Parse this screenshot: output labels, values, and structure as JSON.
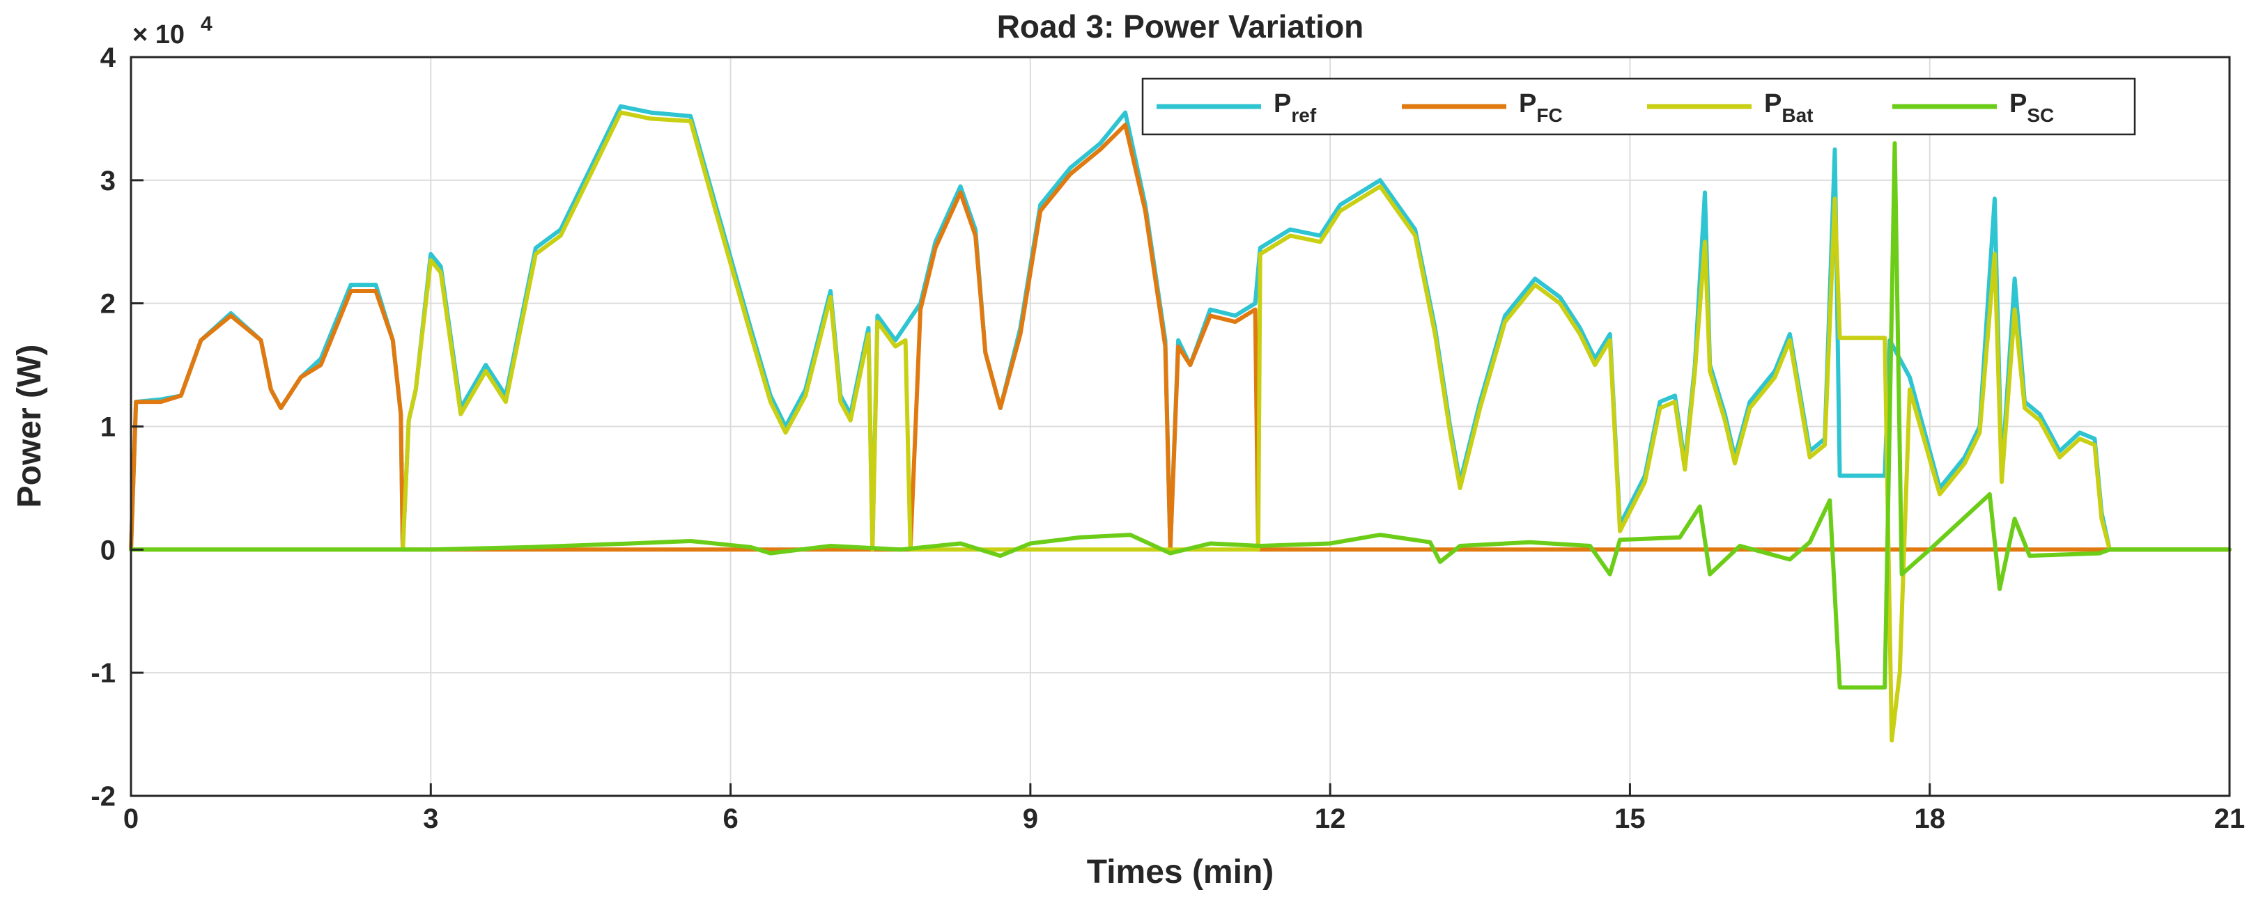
{
  "chart_data": {
    "type": "line",
    "title": "Road 3: Power Variation",
    "xlabel": "Times (min)",
    "ylabel": "Power (W)",
    "xlim": [
      0,
      21
    ],
    "ylim": [
      -20000,
      40000
    ],
    "x_ticks": [
      "0",
      "3",
      "6",
      "9",
      "12",
      "15",
      "18",
      "21"
    ],
    "y_ticks": [
      "-2",
      "-1",
      "0",
      "1",
      "2",
      "3",
      "4"
    ],
    "y_exponent": "4",
    "y_multiplier_text": "× 10",
    "grid": true,
    "legend_position": "top-right",
    "colors": {
      "P_ref": "#2ec4d1",
      "P_FC": "#e07a10",
      "P_Bat": "#c9cf12",
      "P_SC": "#6ccd18",
      "axis": "#262626",
      "grid": "#dcdcdc"
    },
    "legend": [
      {
        "key": "P_ref",
        "main": "P",
        "sub": "ref"
      },
      {
        "key": "P_FC",
        "main": "P",
        "sub": "FC"
      },
      {
        "key": "P_Bat",
        "main": "P",
        "sub": "Bat"
      },
      {
        "key": "P_SC",
        "main": "P",
        "sub": "SC"
      }
    ],
    "series": [
      {
        "key": "P_ref",
        "points": [
          [
            0,
            0
          ],
          [
            0.05,
            12000
          ],
          [
            0.3,
            12200
          ],
          [
            0.5,
            12500
          ],
          [
            0.7,
            17000
          ],
          [
            1.0,
            19200
          ],
          [
            1.3,
            17000
          ],
          [
            1.4,
            13000
          ],
          [
            1.5,
            11500
          ],
          [
            1.7,
            14000
          ],
          [
            1.9,
            15500
          ],
          [
            2.2,
            21500
          ],
          [
            2.45,
            21500
          ],
          [
            2.62,
            17000
          ],
          [
            2.7,
            11000
          ],
          [
            2.72,
            0
          ],
          [
            2.78,
            10500
          ],
          [
            2.85,
            13000
          ],
          [
            3.0,
            24000
          ],
          [
            3.1,
            23000
          ],
          [
            3.3,
            11500
          ],
          [
            3.55,
            15000
          ],
          [
            3.75,
            12500
          ],
          [
            4.05,
            24500
          ],
          [
            4.3,
            26000
          ],
          [
            4.6,
            31000
          ],
          [
            4.9,
            36000
          ],
          [
            5.2,
            35500
          ],
          [
            5.6,
            35200
          ],
          [
            5.85,
            28000
          ],
          [
            6.2,
            18000
          ],
          [
            6.4,
            12500
          ],
          [
            6.55,
            10000
          ],
          [
            6.75,
            13000
          ],
          [
            7.0,
            21000
          ],
          [
            7.1,
            12500
          ],
          [
            7.2,
            11000
          ],
          [
            7.38,
            18000
          ],
          [
            7.42,
            0
          ],
          [
            7.47,
            19000
          ],
          [
            7.65,
            17000
          ],
          [
            7.9,
            20000
          ],
          [
            8.05,
            25000
          ],
          [
            8.3,
            29500
          ],
          [
            8.45,
            26000
          ],
          [
            8.55,
            16000
          ],
          [
            8.7,
            11500
          ],
          [
            8.9,
            18000
          ],
          [
            9.1,
            28000
          ],
          [
            9.4,
            31000
          ],
          [
            9.7,
            33000
          ],
          [
            9.95,
            35500
          ],
          [
            10.15,
            28000
          ],
          [
            10.35,
            17000
          ],
          [
            10.4,
            0
          ],
          [
            10.48,
            17000
          ],
          [
            10.6,
            15000
          ],
          [
            10.8,
            19500
          ],
          [
            11.05,
            19000
          ],
          [
            11.25,
            20000
          ],
          [
            11.3,
            24500
          ],
          [
            11.6,
            26000
          ],
          [
            11.9,
            25500
          ],
          [
            12.1,
            28000
          ],
          [
            12.5,
            30000
          ],
          [
            12.85,
            26000
          ],
          [
            13.05,
            18000
          ],
          [
            13.2,
            10000
          ],
          [
            13.3,
            5500
          ],
          [
            13.5,
            12000
          ],
          [
            13.75,
            19000
          ],
          [
            14.05,
            22000
          ],
          [
            14.3,
            20500
          ],
          [
            14.5,
            18000
          ],
          [
            14.65,
            15500
          ],
          [
            14.8,
            17500
          ],
          [
            14.9,
            2000
          ],
          [
            15.15,
            6000
          ],
          [
            15.3,
            12000
          ],
          [
            15.45,
            12500
          ],
          [
            15.55,
            7000
          ],
          [
            15.65,
            15000
          ],
          [
            15.75,
            29000
          ],
          [
            15.8,
            15000
          ],
          [
            15.95,
            11000
          ],
          [
            16.05,
            7500
          ],
          [
            16.2,
            12000
          ],
          [
            16.45,
            14500
          ],
          [
            16.6,
            17500
          ],
          [
            16.8,
            8000
          ],
          [
            16.95,
            9000
          ],
          [
            17.05,
            32500
          ],
          [
            17.1,
            6000
          ],
          [
            17.4,
            6000
          ],
          [
            17.55,
            6000
          ],
          [
            17.6,
            17000
          ],
          [
            17.8,
            14000
          ],
          [
            18.1,
            5000
          ],
          [
            18.35,
            7500
          ],
          [
            18.5,
            10000
          ],
          [
            18.65,
            28500
          ],
          [
            18.72,
            6000
          ],
          [
            18.85,
            22000
          ],
          [
            18.95,
            12000
          ],
          [
            19.1,
            11000
          ],
          [
            19.3,
            8000
          ],
          [
            19.5,
            9500
          ],
          [
            19.65,
            9000
          ],
          [
            19.72,
            3000
          ],
          [
            19.8,
            0
          ],
          [
            21,
            0
          ]
        ]
      },
      {
        "key": "P_FC",
        "points": [
          [
            0,
            0
          ],
          [
            0.05,
            12000
          ],
          [
            0.3,
            12000
          ],
          [
            0.5,
            12500
          ],
          [
            0.7,
            17000
          ],
          [
            1.0,
            19000
          ],
          [
            1.3,
            17000
          ],
          [
            1.4,
            13000
          ],
          [
            1.5,
            11500
          ],
          [
            1.7,
            14000
          ],
          [
            1.9,
            15000
          ],
          [
            2.2,
            21000
          ],
          [
            2.45,
            21000
          ],
          [
            2.62,
            17000
          ],
          [
            2.7,
            11000
          ],
          [
            2.72,
            0
          ],
          [
            7.8,
            0
          ],
          [
            7.9,
            19500
          ],
          [
            8.05,
            24500
          ],
          [
            8.3,
            29000
          ],
          [
            8.45,
            25500
          ],
          [
            8.55,
            16000
          ],
          [
            8.7,
            11500
          ],
          [
            8.9,
            17500
          ],
          [
            9.1,
            27500
          ],
          [
            9.4,
            30500
          ],
          [
            9.7,
            32500
          ],
          [
            9.95,
            34500
          ],
          [
            10.15,
            27500
          ],
          [
            10.35,
            16500
          ],
          [
            10.4,
            0
          ],
          [
            10.48,
            16500
          ],
          [
            10.6,
            15000
          ],
          [
            10.8,
            19000
          ],
          [
            11.05,
            18500
          ],
          [
            11.25,
            19500
          ],
          [
            11.28,
            0
          ],
          [
            21,
            0
          ]
        ]
      },
      {
        "key": "P_Bat",
        "points": [
          [
            0,
            0
          ],
          [
            2.72,
            0
          ],
          [
            2.78,
            10500
          ],
          [
            2.85,
            13000
          ],
          [
            3.0,
            23500
          ],
          [
            3.1,
            22500
          ],
          [
            3.3,
            11000
          ],
          [
            3.55,
            14500
          ],
          [
            3.75,
            12000
          ],
          [
            4.05,
            24000
          ],
          [
            4.3,
            25500
          ],
          [
            4.6,
            30500
          ],
          [
            4.9,
            35500
          ],
          [
            5.2,
            35000
          ],
          [
            5.6,
            34800
          ],
          [
            5.85,
            27500
          ],
          [
            6.2,
            17500
          ],
          [
            6.4,
            12000
          ],
          [
            6.55,
            9500
          ],
          [
            6.75,
            12500
          ],
          [
            7.0,
            20500
          ],
          [
            7.1,
            12000
          ],
          [
            7.2,
            10500
          ],
          [
            7.38,
            17500
          ],
          [
            7.42,
            0
          ],
          [
            7.47,
            18500
          ],
          [
            7.65,
            16500
          ],
          [
            7.75,
            17000
          ],
          [
            7.8,
            0
          ],
          [
            11.28,
            0
          ],
          [
            11.3,
            24000
          ],
          [
            11.6,
            25500
          ],
          [
            11.9,
            25000
          ],
          [
            12.1,
            27500
          ],
          [
            12.5,
            29500
          ],
          [
            12.85,
            25500
          ],
          [
            13.05,
            17500
          ],
          [
            13.2,
            9500
          ],
          [
            13.3,
            5000
          ],
          [
            13.5,
            11500
          ],
          [
            13.75,
            18500
          ],
          [
            14.05,
            21500
          ],
          [
            14.3,
            20000
          ],
          [
            14.5,
            17500
          ],
          [
            14.65,
            15000
          ],
          [
            14.8,
            17000
          ],
          [
            14.9,
            1500
          ],
          [
            15.15,
            5500
          ],
          [
            15.3,
            11500
          ],
          [
            15.45,
            12000
          ],
          [
            15.55,
            6500
          ],
          [
            15.65,
            14500
          ],
          [
            15.75,
            25000
          ],
          [
            15.8,
            14500
          ],
          [
            15.95,
            10500
          ],
          [
            16.05,
            7000
          ],
          [
            16.2,
            11500
          ],
          [
            16.45,
            14000
          ],
          [
            16.6,
            17000
          ],
          [
            16.8,
            7500
          ],
          [
            16.95,
            8500
          ],
          [
            17.05,
            28500
          ],
          [
            17.1,
            17200
          ],
          [
            17.55,
            17200
          ],
          [
            17.62,
            -15500
          ],
          [
            17.7,
            -10000
          ],
          [
            17.8,
            13000
          ],
          [
            18.1,
            4500
          ],
          [
            18.35,
            7000
          ],
          [
            18.5,
            9500
          ],
          [
            18.65,
            24000
          ],
          [
            18.72,
            5500
          ],
          [
            18.85,
            19500
          ],
          [
            18.95,
            11500
          ],
          [
            19.1,
            10500
          ],
          [
            19.3,
            7500
          ],
          [
            19.5,
            9000
          ],
          [
            19.65,
            8500
          ],
          [
            19.72,
            2500
          ],
          [
            19.8,
            0
          ],
          [
            21,
            0
          ]
        ]
      },
      {
        "key": "P_SC",
        "points": [
          [
            0,
            0
          ],
          [
            3.0,
            0
          ],
          [
            4.0,
            200
          ],
          [
            5.0,
            500
          ],
          [
            5.6,
            700
          ],
          [
            6.2,
            200
          ],
          [
            6.4,
            -300
          ],
          [
            7.0,
            300
          ],
          [
            7.7,
            0
          ],
          [
            8.3,
            500
          ],
          [
            8.7,
            -500
          ],
          [
            9.0,
            500
          ],
          [
            9.5,
            1000
          ],
          [
            10.0,
            1200
          ],
          [
            10.4,
            -300
          ],
          [
            10.8,
            500
          ],
          [
            11.3,
            300
          ],
          [
            12.0,
            500
          ],
          [
            12.5,
            1200
          ],
          [
            13.0,
            600
          ],
          [
            13.1,
            -1000
          ],
          [
            13.3,
            300
          ],
          [
            14.0,
            600
          ],
          [
            14.6,
            300
          ],
          [
            14.8,
            -2000
          ],
          [
            14.9,
            800
          ],
          [
            15.5,
            1000
          ],
          [
            15.7,
            3500
          ],
          [
            15.8,
            -2000
          ],
          [
            16.1,
            300
          ],
          [
            16.6,
            -800
          ],
          [
            16.8,
            600
          ],
          [
            17.0,
            4000
          ],
          [
            17.1,
            -11200
          ],
          [
            17.55,
            -11200
          ],
          [
            17.65,
            33000
          ],
          [
            17.72,
            -2000
          ],
          [
            18.0,
            0
          ],
          [
            18.6,
            4500
          ],
          [
            18.7,
            -3200
          ],
          [
            18.85,
            2500
          ],
          [
            19.0,
            -500
          ],
          [
            19.7,
            -300
          ],
          [
            19.8,
            0
          ],
          [
            21,
            0
          ]
        ]
      }
    ]
  }
}
